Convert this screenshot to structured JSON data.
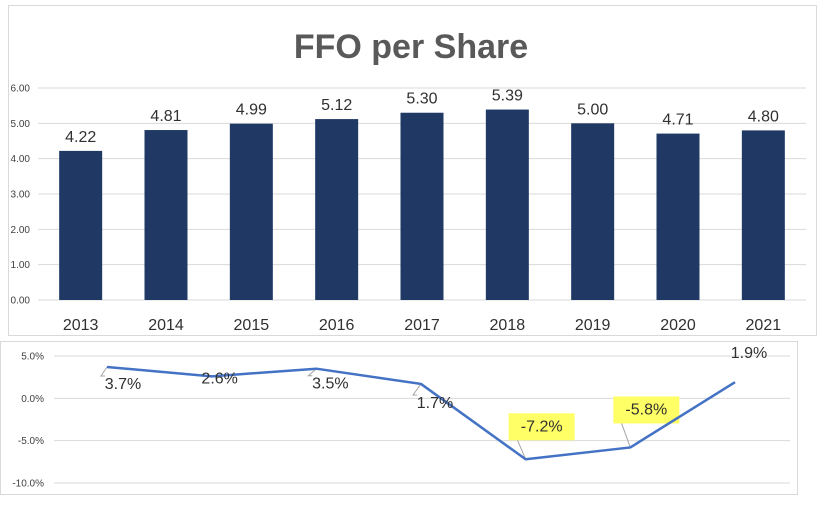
{
  "chart_data": [
    {
      "type": "bar",
      "title": "FFO per Share",
      "categories": [
        "2013",
        "2014",
        "2015",
        "2016",
        "2017",
        "2018",
        "2019",
        "2020",
        "2021"
      ],
      "values": [
        4.22,
        4.81,
        4.99,
        5.12,
        5.3,
        5.39,
        5.0,
        4.71,
        4.8
      ],
      "data_labels": [
        "4.22",
        "4.81",
        "4.99",
        "5.12",
        "5.30",
        "5.39",
        "5.00",
        "4.71",
        "4.80"
      ],
      "ylim": [
        0,
        6
      ],
      "yticks": [
        "0.00",
        "1.00",
        "2.00",
        "3.00",
        "4.00",
        "5.00",
        "6.00"
      ],
      "grid": true,
      "bar_color": "#1f3864"
    },
    {
      "type": "line",
      "values": [
        3.7,
        2.6,
        3.5,
        1.7,
        -7.2,
        -5.8,
        1.9
      ],
      "data_labels": [
        "3.7%",
        "2.6%",
        "3.5%",
        "1.7%",
        "-7.2%",
        "-5.8%",
        "1.9%"
      ],
      "highlighted_labels": [
        4,
        5
      ],
      "ylim": [
        -10,
        5
      ],
      "yticks": [
        "-10.0%",
        "-5.0%",
        "0.0%",
        "5.0%"
      ],
      "grid": true,
      "line_color": "#4472c4",
      "highlight_color": "#ffff66"
    }
  ]
}
